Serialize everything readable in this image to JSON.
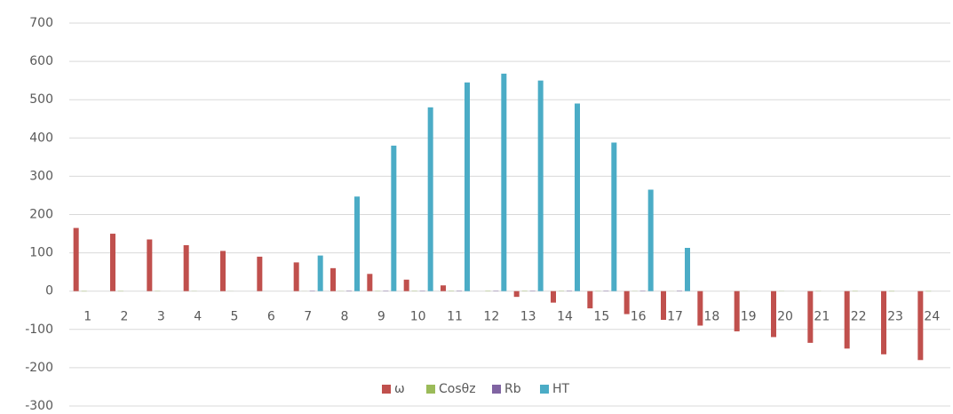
{
  "chart_data": {
    "type": "bar",
    "categories": [
      "1",
      "2",
      "3",
      "4",
      "5",
      "6",
      "7",
      "8",
      "9",
      "10",
      "11",
      "12",
      "13",
      "14",
      "15",
      "16",
      "17",
      "18",
      "19",
      "20",
      "21",
      "22",
      "23",
      "24"
    ],
    "series": [
      {
        "name": "ω",
        "color": "#c0504d",
        "values": [
          165,
          150,
          135,
          120,
          105,
          90,
          75,
          60,
          45,
          30,
          15,
          0,
          -15,
          -30,
          -45,
          -60,
          -75,
          -90,
          -105,
          -120,
          -135,
          -150,
          -165,
          -180
        ]
      },
      {
        "name": "Cosθz",
        "color": "#9bbb59",
        "values": [
          -0.84,
          -0.75,
          -0.61,
          -0.43,
          -0.22,
          0,
          0.22,
          0.43,
          0.61,
          0.75,
          0.84,
          0.87,
          0.84,
          0.75,
          0.61,
          0.43,
          0.22,
          0,
          -0.22,
          -0.43,
          -0.61,
          -0.75,
          -0.84,
          -0.87
        ]
      },
      {
        "name": "Rb",
        "color": "#8064a2",
        "values": [
          0,
          0,
          0,
          0,
          0,
          0,
          1,
          1,
          1,
          1,
          1,
          1,
          1,
          1,
          1,
          1,
          1,
          0,
          0,
          0,
          0,
          0,
          0,
          0
        ]
      },
      {
        "name": "HT",
        "color": "#4bacc6",
        "values": [
          0,
          0,
          0,
          0,
          0,
          0,
          93,
          247,
          380,
          480,
          545,
          568,
          550,
          490,
          388,
          265,
          113,
          0,
          0,
          0,
          0,
          0,
          0,
          0
        ]
      }
    ],
    "ylim": [
      -300,
      700
    ],
    "yticks": [
      -300,
      -200,
      -100,
      0,
      100,
      200,
      300,
      400,
      500,
      600,
      700
    ],
    "grid": true,
    "legend": "bottom"
  }
}
